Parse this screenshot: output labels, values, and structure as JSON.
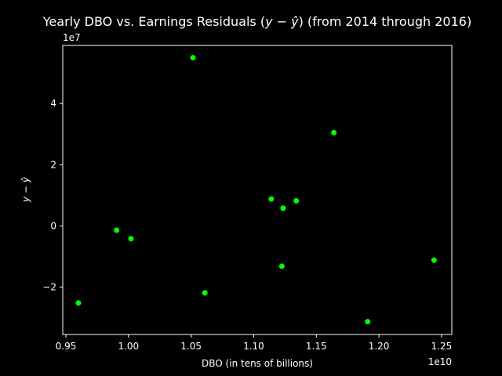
{
  "chart_data": {
    "type": "scatter",
    "title": "Yearly DBO vs. Earnings Residuals (y − ŷ) (from 2014 through 2016)",
    "title_parts": {
      "prefix": "Yearly DBO vs. Earnings Residuals (",
      "y": "y",
      "minus": " − ",
      "yhat": "ŷ",
      "suffix": ") (from 2014 through 2016)"
    },
    "xlabel": "DBO (in tens of billions)",
    "ylabel": "y − ŷ",
    "ylabel_parts": {
      "y": "y",
      "minus": " − ",
      "yhat": "ŷ"
    },
    "x_offset_label": "1e10",
    "y_offset_label": "1e7",
    "x_scale_factor": 10000000000,
    "y_scale_factor": 10000000,
    "xlim": [
      0.9475,
      1.2582
    ],
    "ylim": [
      -3.55,
      5.9
    ],
    "x_ticks": [
      0.95,
      1.0,
      1.05,
      1.1,
      1.15,
      1.2,
      1.25
    ],
    "x_tick_labels": [
      "0.95",
      "1.00",
      "1.05",
      "1.10",
      "1.15",
      "1.20",
      "1.25"
    ],
    "y_ticks": [
      -2,
      0,
      2,
      4
    ],
    "y_tick_labels": [
      "−2",
      "0",
      "2",
      "4"
    ],
    "grid": false,
    "series": [
      {
        "color": "#00ff00",
        "points": [
          {
            "x": 0.96,
            "y": -2.52
          },
          {
            "x": 0.9905,
            "y": -0.14
          },
          {
            "x": 1.002,
            "y": -0.42
          },
          {
            "x": 1.0515,
            "y": 5.5
          },
          {
            "x": 1.061,
            "y": -2.19
          },
          {
            "x": 1.114,
            "y": 0.88
          },
          {
            "x": 1.1225,
            "y": -1.32
          },
          {
            "x": 1.1235,
            "y": 0.58
          },
          {
            "x": 1.134,
            "y": 0.82
          },
          {
            "x": 1.164,
            "y": 3.05
          },
          {
            "x": 1.191,
            "y": -3.13
          },
          {
            "x": 1.244,
            "y": -1.12
          }
        ]
      }
    ]
  }
}
